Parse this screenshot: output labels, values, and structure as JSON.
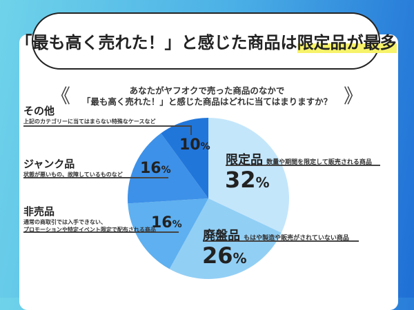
{
  "title": {
    "pre": "「最も高く売れた！」と感じた商品は",
    "highlight": "限定品が最多"
  },
  "question": {
    "line1": "あなたがヤフオクで売った商品のなかで",
    "line2": "「最も高く売れた！」と感じた商品はどれに当てはまりますか？",
    "left_mark": "《",
    "right_mark": "》"
  },
  "chart_data": {
    "type": "pie",
    "start": "12 o'clock",
    "direction": "clockwise",
    "slices": [
      {
        "label": "限定品",
        "desc": "数量や期間を限定して販売される商品",
        "value": 32,
        "pct": "32",
        "color": "#c4e6fb"
      },
      {
        "label": "廃盤品",
        "desc": "もはや製造や販売がされていない商品",
        "value": 26,
        "pct": "26",
        "color": "#92cff5"
      },
      {
        "label": "非売品",
        "desc": "通常の商取引では入手できない、",
        "desc2": "プロモーションや特定イベント限定で配布される商品",
        "value": 16,
        "pct": "16",
        "color": "#5eb0f0"
      },
      {
        "label": "ジャンク品",
        "desc": "状態が悪いもの、故障しているものなど",
        "value": 16,
        "pct": "16",
        "color": "#3d91e8"
      },
      {
        "label": "その他",
        "desc": "上記のカテゴリーに当てはまらない特殊なケースなど",
        "value": 10,
        "pct": "10",
        "color": "#2176da"
      }
    ],
    "unit": "%"
  }
}
